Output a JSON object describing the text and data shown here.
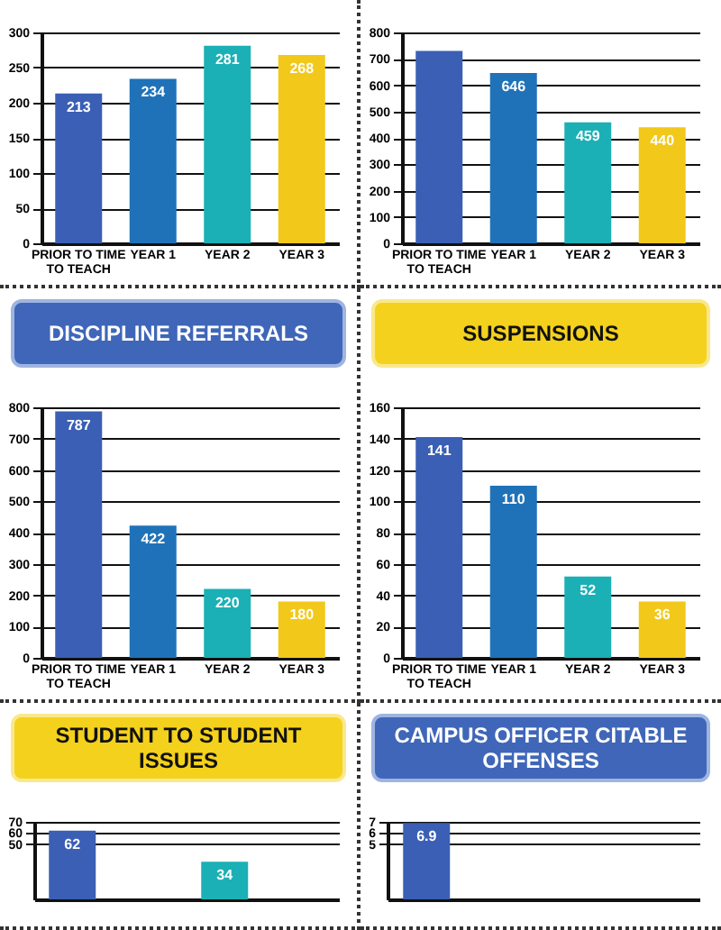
{
  "chart_data": [
    {
      "type": "bar",
      "categories": [
        "PRIOR TO TIME TO TEACH",
        "YEAR 1",
        "YEAR 2",
        "YEAR 3"
      ],
      "values": [
        213,
        234,
        281,
        268
      ],
      "colors": [
        "#3a5fb4",
        "#1f72b8",
        "#1bb0b5",
        "#f2c81a"
      ],
      "value_labels": [
        "213",
        "234",
        "281",
        "268"
      ],
      "ylim": [
        0,
        300
      ],
      "yticks": [
        0,
        50,
        100,
        150,
        200,
        250,
        300
      ],
      "grid": "y"
    },
    {
      "type": "bar",
      "categories": [
        "PRIOR TO TIME TO TEACH",
        "YEAR 1",
        "YEAR 2",
        "YEAR 3"
      ],
      "values": [
        730,
        646,
        459,
        440
      ],
      "colors": [
        "#3a5fb4",
        "#1f72b8",
        "#1bb0b5",
        "#f2c81a"
      ],
      "value_labels": [
        null,
        "646",
        "459",
        "440"
      ],
      "ylim": [
        0,
        800
      ],
      "yticks": [
        0,
        100,
        200,
        300,
        400,
        500,
        600,
        700,
        800
      ],
      "grid": "y"
    },
    {
      "type": "bar",
      "title": "DISCIPLINE REFERRALS",
      "categories": [
        "PRIOR TO TIME TO TEACH",
        "YEAR 1",
        "YEAR 2",
        "YEAR 3"
      ],
      "values": [
        787,
        422,
        220,
        180
      ],
      "colors": [
        "#3a5fb4",
        "#1f72b8",
        "#1bb0b5",
        "#f2c81a"
      ],
      "value_labels": [
        "787",
        "422",
        "220",
        "180"
      ],
      "ylim": [
        0,
        800
      ],
      "yticks": [
        0,
        100,
        200,
        300,
        400,
        500,
        600,
        700,
        800
      ],
      "grid": "y"
    },
    {
      "type": "bar",
      "title": "SUSPENSIONS",
      "categories": [
        "PRIOR TO TIME TO TEACH",
        "YEAR 1",
        "YEAR 2",
        "YEAR 3"
      ],
      "values": [
        141,
        110,
        52,
        36
      ],
      "colors": [
        "#3a5fb4",
        "#1f72b8",
        "#1bb0b5",
        "#f2c81a"
      ],
      "value_labels": [
        "141",
        "110",
        "52",
        "36"
      ],
      "ylim": [
        0,
        160
      ],
      "yticks": [
        0,
        20,
        40,
        60,
        80,
        100,
        120,
        140,
        160
      ],
      "grid": "y"
    },
    {
      "type": "bar",
      "title": "STUDENT TO STUDENT ISSUES",
      "categories": [
        null,
        null,
        null,
        null
      ],
      "values": [
        62,
        null,
        34,
        null
      ],
      "colors": [
        "#3a5fb4",
        "#1f72b8",
        "#1bb0b5",
        "#f2c81a"
      ],
      "value_labels": [
        "62",
        null,
        "34",
        null
      ],
      "ylim": [
        0,
        70
      ],
      "yticks": [
        50,
        60,
        70
      ],
      "grid": "y"
    },
    {
      "type": "bar",
      "title": "CAMPUS OFFICER CITABLE OFFENSES",
      "categories": [
        null,
        null,
        null,
        null
      ],
      "values": [
        6.9,
        null,
        null,
        null
      ],
      "colors": [
        "#3a5fb4",
        "#1f72b8",
        "#1bb0b5",
        "#f2c81a"
      ],
      "value_labels": [
        "6.9",
        null,
        null,
        null
      ],
      "ylim": [
        0,
        7
      ],
      "yticks": [
        5,
        6,
        7
      ],
      "grid": "y"
    }
  ]
}
